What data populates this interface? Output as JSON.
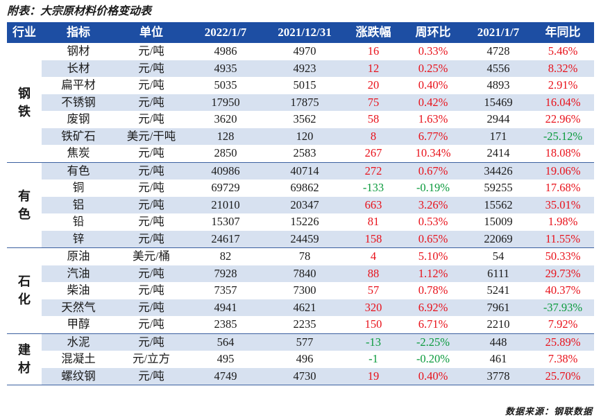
{
  "caption": "附表：大宗原材料价格变动表",
  "headers": {
    "industry": "行业",
    "indicator": "指标",
    "unit": "单位",
    "date1": "2022/1/7",
    "date2": "2021/12/31",
    "change": "涨跌幅",
    "wow": "周环比",
    "date3": "2021/1/7",
    "yoy": "年同比"
  },
  "groups": [
    {
      "name": "钢\n铁",
      "rows": [
        {
          "name": "钢材",
          "unit": "元/吨",
          "d1": "4986",
          "d2": "4970",
          "chg": "16",
          "wow": "0.33%",
          "d3": "4728",
          "yoy": "5.46%"
        },
        {
          "name": "长材",
          "unit": "元/吨",
          "d1": "4935",
          "d2": "4923",
          "chg": "12",
          "wow": "0.25%",
          "d3": "4556",
          "yoy": "8.32%"
        },
        {
          "name": "扁平材",
          "unit": "元/吨",
          "d1": "5035",
          "d2": "5015",
          "chg": "20",
          "wow": "0.40%",
          "d3": "4893",
          "yoy": "2.91%"
        },
        {
          "name": "不锈钢",
          "unit": "元/吨",
          "d1": "17950",
          "d2": "17875",
          "chg": "75",
          "wow": "0.42%",
          "d3": "15469",
          "yoy": "16.04%"
        },
        {
          "name": "废钢",
          "unit": "元/吨",
          "d1": "3620",
          "d2": "3562",
          "chg": "58",
          "wow": "1.63%",
          "d3": "2944",
          "yoy": "22.96%"
        },
        {
          "name": "铁矿石",
          "unit": "美元/干吨",
          "d1": "128",
          "d2": "120",
          "chg": "8",
          "wow": "6.77%",
          "d3": "171",
          "yoy": "-25.12%"
        },
        {
          "name": "焦炭",
          "unit": "元/吨",
          "d1": "2850",
          "d2": "2583",
          "chg": "267",
          "wow": "10.34%",
          "d3": "2414",
          "yoy": "18.08%"
        }
      ]
    },
    {
      "name": "有\n色",
      "rows": [
        {
          "name": "有色",
          "unit": "元/吨",
          "d1": "40986",
          "d2": "40714",
          "chg": "272",
          "wow": "0.67%",
          "d3": "34426",
          "yoy": "19.06%"
        },
        {
          "name": "铜",
          "unit": "元/吨",
          "d1": "69729",
          "d2": "69862",
          "chg": "-133",
          "wow": "-0.19%",
          "d3": "59255",
          "yoy": "17.68%"
        },
        {
          "name": "铝",
          "unit": "元/吨",
          "d1": "21010",
          "d2": "20347",
          "chg": "663",
          "wow": "3.26%",
          "d3": "15562",
          "yoy": "35.01%"
        },
        {
          "name": "铅",
          "unit": "元/吨",
          "d1": "15307",
          "d2": "15226",
          "chg": "81",
          "wow": "0.53%",
          "d3": "15009",
          "yoy": "1.98%"
        },
        {
          "name": "锌",
          "unit": "元/吨",
          "d1": "24617",
          "d2": "24459",
          "chg": "158",
          "wow": "0.65%",
          "d3": "22069",
          "yoy": "11.55%"
        }
      ]
    },
    {
      "name": "石\n化",
      "rows": [
        {
          "name": "原油",
          "unit": "美元/桶",
          "d1": "82",
          "d2": "78",
          "chg": "4",
          "wow": "5.10%",
          "d3": "54",
          "yoy": "50.33%"
        },
        {
          "name": "汽油",
          "unit": "元/吨",
          "d1": "7928",
          "d2": "7840",
          "chg": "88",
          "wow": "1.12%",
          "d3": "6111",
          "yoy": "29.73%"
        },
        {
          "name": "柴油",
          "unit": "元/吨",
          "d1": "7357",
          "d2": "7300",
          "chg": "57",
          "wow": "0.78%",
          "d3": "5241",
          "yoy": "40.37%"
        },
        {
          "name": "天然气",
          "unit": "元/吨",
          "d1": "4941",
          "d2": "4621",
          "chg": "320",
          "wow": "6.92%",
          "d3": "7961",
          "yoy": "-37.93%"
        },
        {
          "name": "甲醇",
          "unit": "元/吨",
          "d1": "2385",
          "d2": "2235",
          "chg": "150",
          "wow": "6.71%",
          "d3": "2210",
          "yoy": "7.92%"
        }
      ]
    },
    {
      "name": "建\n材",
      "rows": [
        {
          "name": "水泥",
          "unit": "元/吨",
          "d1": "564",
          "d2": "577",
          "chg": "-13",
          "wow": "-2.25%",
          "d3": "448",
          "yoy": "25.89%"
        },
        {
          "name": "混凝土",
          "unit": "元/立方",
          "d1": "495",
          "d2": "496",
          "chg": "-1",
          "wow": "-0.20%",
          "d3": "461",
          "yoy": "7.38%"
        },
        {
          "name": "螺纹钢",
          "unit": "元/吨",
          "d1": "4749",
          "d2": "4730",
          "chg": "19",
          "wow": "0.40%",
          "d3": "3778",
          "yoy": "25.70%"
        }
      ]
    }
  ],
  "source": "数据来源：钢联数据",
  "colors": {
    "header_bg": "#1d4ea3",
    "row_alt": "#d7e1f0",
    "positive": "#e8111a",
    "negative": "#0a9a3c"
  }
}
